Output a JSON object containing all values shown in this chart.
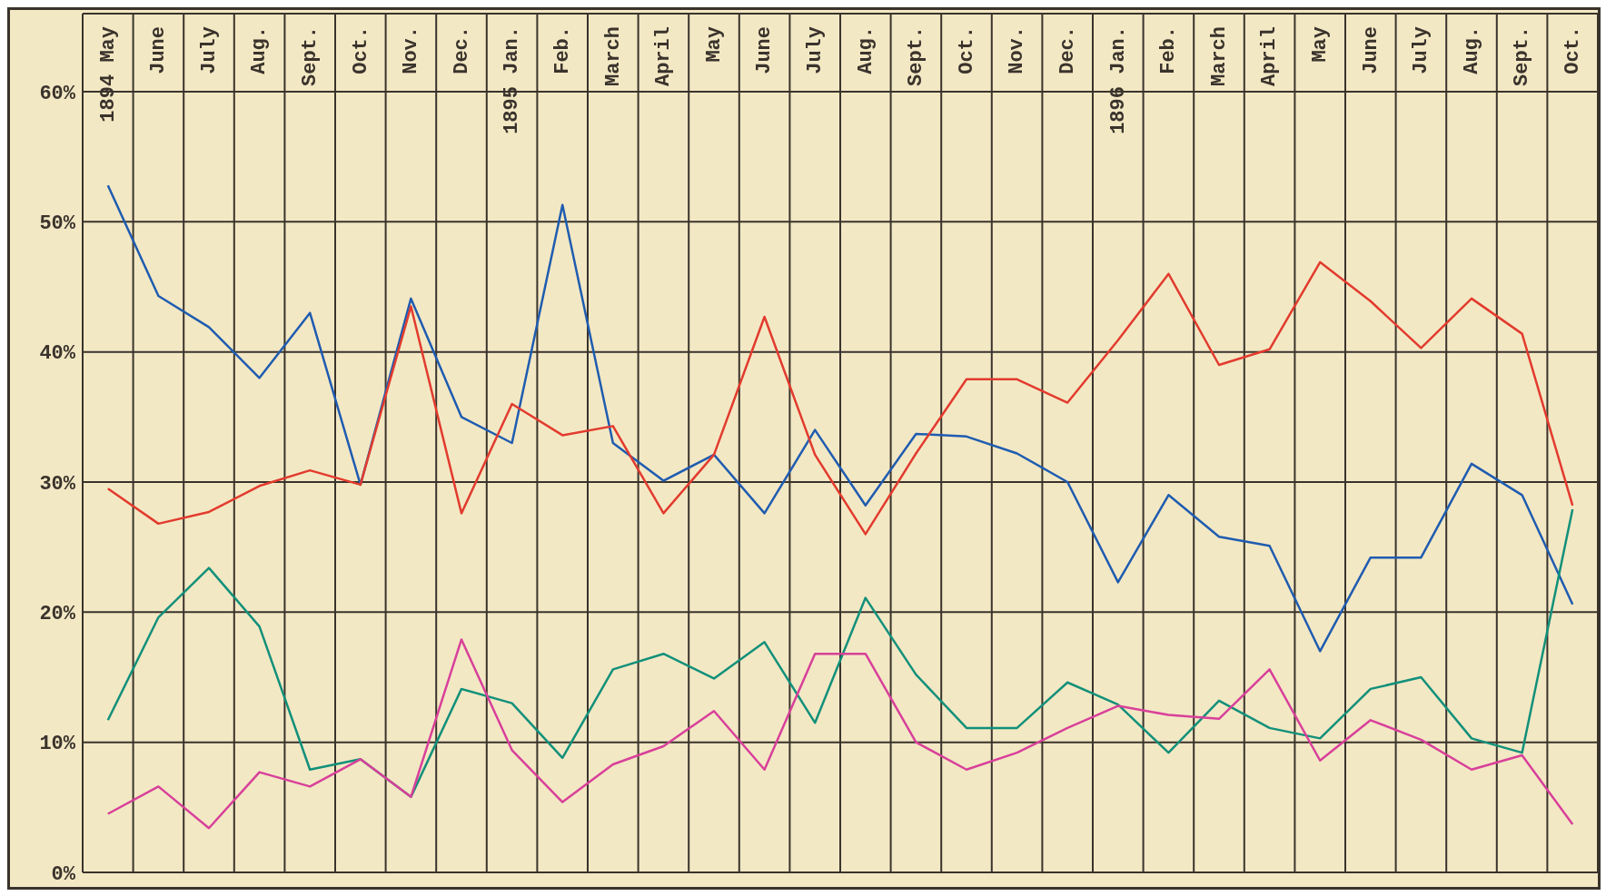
{
  "chart_data": {
    "type": "line",
    "categories": [
      "1894 May",
      "June",
      "July",
      "Aug.",
      "Sept.",
      "Oct.",
      "Nov.",
      "Dec.",
      "1895 Jan.",
      "Feb.",
      "March",
      "April",
      "May",
      "June",
      "July",
      "Aug.",
      "Sept.",
      "Oct.",
      "Nov.",
      "Dec.",
      "1896 Jan.",
      "Feb.",
      "March",
      "April",
      "May",
      "June",
      "July",
      "Aug.",
      "Sept.",
      "Oct."
    ],
    "series": [
      {
        "color": "#1f5cb0",
        "values": [
          52.8,
          44.3,
          41.9,
          38.0,
          43.0,
          29.8,
          44.1,
          35.0,
          33.0,
          51.3,
          33.0,
          30.1,
          32.1,
          27.6,
          34.0,
          28.2,
          33.7,
          33.5,
          32.2,
          30.0,
          22.3,
          29.0,
          25.8,
          25.1,
          17.0,
          24.2,
          24.2,
          31.4,
          29.0,
          20.6
        ]
      },
      {
        "color": "#e23b2e",
        "values": [
          29.5,
          26.8,
          27.7,
          29.7,
          30.9,
          29.8,
          43.5,
          27.6,
          36.0,
          33.6,
          34.3,
          27.6,
          32.1,
          42.7,
          32.1,
          26.0,
          32.2,
          37.9,
          37.9,
          36.1,
          40.9,
          46.0,
          39.0,
          40.2,
          46.9,
          43.9,
          40.3,
          44.1,
          41.4,
          28.2
        ]
      },
      {
        "color": "#12907a",
        "values": [
          11.7,
          19.6,
          23.4,
          18.9,
          7.9,
          8.7,
          5.8,
          14.1,
          13.0,
          8.8,
          15.6,
          16.8,
          14.9,
          17.7,
          11.5,
          21.1,
          15.2,
          11.1,
          11.1,
          14.6,
          12.9,
          9.2,
          13.2,
          11.1,
          10.3,
          14.1,
          15.0,
          10.3,
          9.2,
          27.9
        ]
      },
      {
        "color": "#d8409a",
        "values": [
          4.5,
          6.6,
          3.4,
          7.7,
          6.6,
          8.7,
          5.8,
          17.9,
          9.4,
          5.4,
          8.3,
          9.7,
          12.4,
          7.9,
          16.8,
          16.8,
          10.0,
          7.9,
          9.2,
          11.1,
          12.8,
          12.1,
          11.8,
          15.6,
          8.6,
          11.7,
          10.2,
          7.9,
          9.0,
          3.7
        ]
      }
    ],
    "ylim": [
      0,
      66
    ],
    "yticks": [
      {
        "value": 0,
        "label": "0%"
      },
      {
        "value": 10,
        "label": "10%"
      },
      {
        "value": 20,
        "label": "20%"
      },
      {
        "value": 30,
        "label": "30%"
      },
      {
        "value": 40,
        "label": "40%"
      },
      {
        "value": 50,
        "label": "50%"
      },
      {
        "value": 60,
        "label": "60%"
      }
    ],
    "grid": true
  }
}
